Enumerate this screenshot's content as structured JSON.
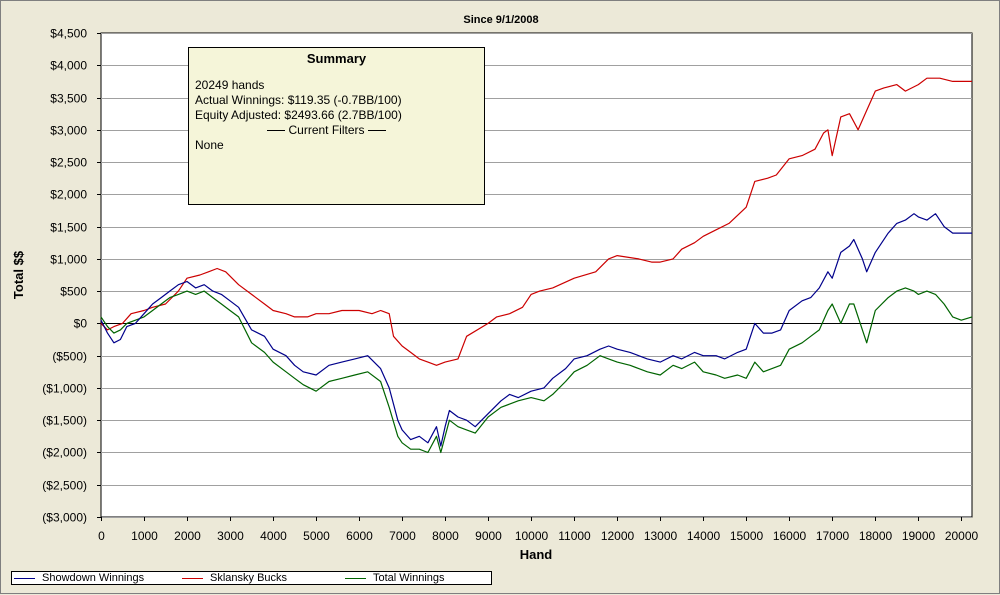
{
  "chart_data": {
    "type": "line",
    "title": "Since 9/1/2008",
    "xlabel": "Hand",
    "ylabel": "Total $$",
    "xlim": [
      0,
      20249
    ],
    "ylim": [
      -3000,
      4500
    ],
    "x_ticks": [
      "0",
      "1000",
      "2000",
      "3000",
      "4000",
      "5000",
      "6000",
      "7000",
      "8000",
      "9000",
      "10000",
      "11000",
      "12000",
      "13000",
      "14000",
      "15000",
      "16000",
      "17000",
      "18000",
      "19000",
      "20000"
    ],
    "y_ticks": [
      "$4,500",
      "$4,000",
      "$3,500",
      "$3,000",
      "$2,500",
      "$2,000",
      "$1,500",
      "$1,000",
      "$500",
      "$0",
      "($500)",
      "($1,000)",
      "($1,500)",
      "($2,000)",
      "($2,500)",
      "($3,000)"
    ],
    "y_tick_values": [
      4500,
      4000,
      3500,
      3000,
      2500,
      2000,
      1500,
      1000,
      500,
      0,
      -500,
      -1000,
      -1500,
      -2000,
      -2500,
      -3000
    ],
    "grid": true,
    "legend": "bottom",
    "series": [
      {
        "name": "Showdown Winnings",
        "color": "#00008b",
        "x": [
          0,
          150,
          300,
          450,
          600,
          800,
          1000,
          1200,
          1400,
          1600,
          1800,
          2000,
          2200,
          2400,
          2600,
          2800,
          3000,
          3200,
          3500,
          3800,
          4000,
          4300,
          4500,
          4700,
          5000,
          5300,
          5600,
          5900,
          6200,
          6500,
          6700,
          6900,
          7000,
          7200,
          7400,
          7600,
          7800,
          7900,
          8000,
          8100,
          8300,
          8500,
          8700,
          9000,
          9300,
          9500,
          9700,
          10000,
          10300,
          10500,
          10800,
          11000,
          11300,
          11600,
          11800,
          12000,
          12300,
          12500,
          12700,
          13000,
          13300,
          13500,
          13800,
          14000,
          14300,
          14500,
          14800,
          15000,
          15200,
          15400,
          15600,
          15800,
          16000,
          16300,
          16500,
          16700,
          16900,
          17000,
          17200,
          17400,
          17500,
          17700,
          17800,
          18000,
          18300,
          18500,
          18700,
          18900,
          19000,
          19200,
          19400,
          19600,
          19800,
          20000,
          20249
        ],
        "values": [
          50,
          -150,
          -300,
          -250,
          -50,
          0,
          150,
          300,
          400,
          500,
          600,
          650,
          550,
          600,
          500,
          450,
          350,
          250,
          -100,
          -200,
          -400,
          -500,
          -650,
          -750,
          -800,
          -650,
          -600,
          -550,
          -500,
          -700,
          -1000,
          -1500,
          -1650,
          -1800,
          -1750,
          -1850,
          -1600,
          -1900,
          -1600,
          -1350,
          -1450,
          -1500,
          -1600,
          -1400,
          -1200,
          -1100,
          -1150,
          -1050,
          -1000,
          -850,
          -700,
          -550,
          -500,
          -400,
          -350,
          -400,
          -450,
          -500,
          -550,
          -600,
          -500,
          -550,
          -450,
          -500,
          -500,
          -550,
          -450,
          -400,
          0,
          -150,
          -150,
          -100,
          200,
          350,
          400,
          550,
          800,
          700,
          1100,
          1200,
          1300,
          1000,
          800,
          1100,
          1400,
          1550,
          1600,
          1700,
          1650,
          1600,
          1700,
          1500,
          1400,
          1400,
          1400
        ]
      },
      {
        "name": "Sklansky Bucks",
        "color": "#cc0000",
        "x": [
          0,
          150,
          300,
          500,
          700,
          1000,
          1200,
          1500,
          1800,
          2000,
          2300,
          2500,
          2700,
          2900,
          3200,
          3500,
          3800,
          4000,
          4300,
          4500,
          4800,
          5000,
          5300,
          5600,
          6000,
          6300,
          6500,
          6700,
          6800,
          7000,
          7200,
          7400,
          7600,
          7800,
          8000,
          8300,
          8500,
          9000,
          9200,
          9500,
          9800,
          10000,
          10200,
          10500,
          11000,
          11500,
          11800,
          12000,
          12500,
          12800,
          13000,
          13300,
          13500,
          13800,
          14000,
          14300,
          14600,
          15000,
          15200,
          15500,
          15700,
          16000,
          16300,
          16600,
          16800,
          16900,
          17000,
          17200,
          17400,
          17600,
          17800,
          18000,
          18200,
          18500,
          18700,
          19000,
          19200,
          19500,
          19800,
          20000,
          20249
        ],
        "values": [
          0,
          -100,
          -50,
          0,
          150,
          200,
          250,
          300,
          500,
          700,
          750,
          800,
          850,
          800,
          600,
          450,
          300,
          200,
          150,
          100,
          100,
          150,
          150,
          200,
          200,
          150,
          200,
          150,
          -200,
          -350,
          -450,
          -550,
          -600,
          -650,
          -600,
          -550,
          -200,
          0,
          100,
          150,
          250,
          450,
          500,
          550,
          700,
          800,
          1000,
          1050,
          1000,
          950,
          950,
          1000,
          1150,
          1250,
          1350,
          1450,
          1550,
          1800,
          2200,
          2250,
          2300,
          2550,
          2600,
          2700,
          2950,
          3000,
          2600,
          3200,
          3250,
          3000,
          3300,
          3600,
          3650,
          3700,
          3600,
          3700,
          3800,
          3800,
          3750,
          3750,
          3750
        ]
      },
      {
        "name": "Total Winnings",
        "color": "#006400",
        "x": [
          0,
          150,
          300,
          450,
          600,
          800,
          1000,
          1200,
          1400,
          1600,
          1800,
          2000,
          2200,
          2400,
          2600,
          2800,
          3000,
          3200,
          3500,
          3800,
          4000,
          4300,
          4500,
          4700,
          5000,
          5300,
          5600,
          5900,
          6200,
          6500,
          6700,
          6900,
          7000,
          7200,
          7400,
          7600,
          7800,
          7900,
          8000,
          8100,
          8300,
          8500,
          8700,
          9000,
          9300,
          9500,
          9700,
          10000,
          10300,
          10500,
          10800,
          11000,
          11300,
          11600,
          11800,
          12000,
          12300,
          12500,
          12700,
          13000,
          13300,
          13500,
          13800,
          14000,
          14300,
          14500,
          14800,
          15000,
          15200,
          15400,
          15600,
          15800,
          16000,
          16300,
          16500,
          16700,
          16900,
          17000,
          17200,
          17400,
          17500,
          17700,
          17800,
          18000,
          18300,
          18500,
          18700,
          18900,
          19000,
          19200,
          19400,
          19600,
          19800,
          20000,
          20249
        ],
        "values": [
          100,
          -50,
          -150,
          -100,
          0,
          50,
          100,
          200,
          300,
          400,
          450,
          500,
          450,
          500,
          400,
          300,
          200,
          100,
          -300,
          -450,
          -600,
          -750,
          -850,
          -950,
          -1050,
          -900,
          -850,
          -800,
          -750,
          -900,
          -1300,
          -1750,
          -1850,
          -1950,
          -1950,
          -2000,
          -1750,
          -2000,
          -1750,
          -1500,
          -1600,
          -1650,
          -1700,
          -1450,
          -1300,
          -1250,
          -1200,
          -1150,
          -1200,
          -1100,
          -900,
          -750,
          -650,
          -500,
          -550,
          -600,
          -650,
          -700,
          -750,
          -800,
          -650,
          -700,
          -600,
          -750,
          -800,
          -850,
          -800,
          -850,
          -600,
          -750,
          -700,
          -650,
          -400,
          -300,
          -200,
          -100,
          200,
          300,
          0,
          300,
          300,
          -100,
          -300,
          200,
          400,
          500,
          550,
          500,
          450,
          500,
          450,
          300,
          100,
          50,
          100
        ]
      }
    ]
  },
  "summary": {
    "title": "Summary",
    "hands": "20249 hands",
    "actual": "Actual Winnings: $119.35 (-0.7BB/100)",
    "equity": "Equity Adjusted: $2493.66 (2.7BB/100)",
    "filters_header": "Current Filters",
    "filters": "None"
  }
}
